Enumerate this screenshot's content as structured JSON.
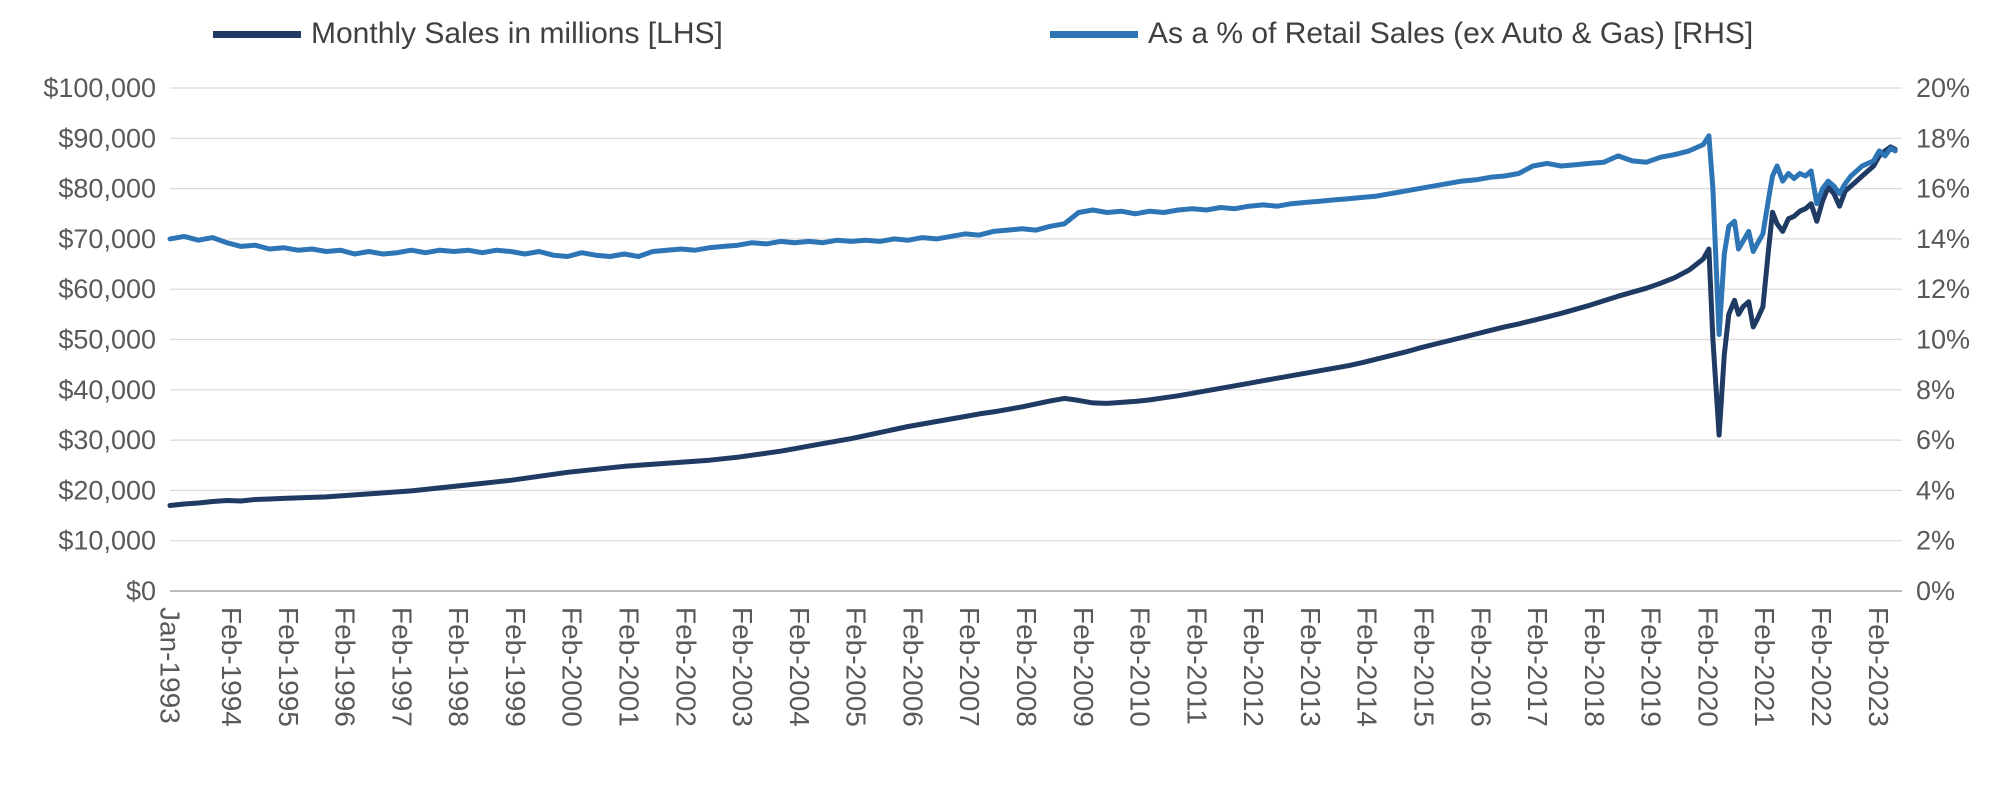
{
  "chart_data": {
    "type": "line",
    "title": "",
    "grid": "horizontal",
    "legend_position": "top",
    "x_axis": {
      "unit": "month-year",
      "range": [
        1993.0,
        2023.5
      ],
      "tick_labels": [
        "Jan-1993",
        "Feb-1994",
        "Feb-1995",
        "Feb-1996",
        "Feb-1997",
        "Feb-1998",
        "Feb-1999",
        "Feb-2000",
        "Feb-2001",
        "Feb-2002",
        "Feb-2003",
        "Feb-2004",
        "Feb-2005",
        "Feb-2006",
        "Feb-2007",
        "Feb-2008",
        "Feb-2009",
        "Feb-2010",
        "Feb-2011",
        "Feb-2012",
        "Feb-2013",
        "Feb-2014",
        "Feb-2015",
        "Feb-2016",
        "Feb-2017",
        "Feb-2018",
        "Feb-2019",
        "Feb-2020",
        "Feb-2021",
        "Feb-2022",
        "Feb-2023"
      ],
      "tick_positions": [
        1993.0,
        1994.083,
        1995.083,
        1996.083,
        1997.083,
        1998.083,
        1999.083,
        2000.083,
        2001.083,
        2002.083,
        2003.083,
        2004.083,
        2005.083,
        2006.083,
        2007.083,
        2008.083,
        2009.083,
        2010.083,
        2011.083,
        2012.083,
        2013.083,
        2014.083,
        2015.083,
        2016.083,
        2017.083,
        2018.083,
        2019.083,
        2020.083,
        2021.083,
        2022.083,
        2023.083
      ]
    },
    "left_axis": {
      "min": 0,
      "max": 100000,
      "step": 10000,
      "tick_labels": [
        "$0",
        "$10,000",
        "$20,000",
        "$30,000",
        "$40,000",
        "$50,000",
        "$60,000",
        "$70,000",
        "$80,000",
        "$90,000",
        "$100,000"
      ]
    },
    "right_axis": {
      "min": 0,
      "max": 20,
      "step": 2,
      "tick_labels": [
        "0%",
        "2%",
        "4%",
        "6%",
        "8%",
        "10%",
        "12%",
        "14%",
        "16%",
        "18%",
        "20%"
      ]
    },
    "x": [
      1993.0,
      1993.25,
      1993.5,
      1993.75,
      1994.0,
      1994.25,
      1994.5,
      1994.75,
      1995.0,
      1995.25,
      1995.5,
      1995.75,
      1996.0,
      1996.25,
      1996.5,
      1996.75,
      1997.0,
      1997.25,
      1997.5,
      1997.75,
      1998.0,
      1998.25,
      1998.5,
      1998.75,
      1999.0,
      1999.25,
      1999.5,
      1999.75,
      2000.0,
      2000.25,
      2000.5,
      2000.75,
      2001.0,
      2001.25,
      2001.5,
      2001.75,
      2002.0,
      2002.25,
      2002.5,
      2002.75,
      2003.0,
      2003.25,
      2003.5,
      2003.75,
      2004.0,
      2004.25,
      2004.5,
      2004.75,
      2005.0,
      2005.25,
      2005.5,
      2005.75,
      2006.0,
      2006.25,
      2006.5,
      2006.75,
      2007.0,
      2007.25,
      2007.5,
      2007.75,
      2008.0,
      2008.25,
      2008.5,
      2008.75,
      2009.0,
      2009.25,
      2009.5,
      2009.75,
      2010.0,
      2010.25,
      2010.5,
      2010.75,
      2011.0,
      2011.25,
      2011.5,
      2011.75,
      2012.0,
      2012.25,
      2012.5,
      2012.75,
      2013.0,
      2013.25,
      2013.5,
      2013.75,
      2014.0,
      2014.25,
      2014.5,
      2014.75,
      2015.0,
      2015.25,
      2015.5,
      2015.75,
      2016.0,
      2016.25,
      2016.5,
      2016.75,
      2017.0,
      2017.25,
      2017.5,
      2017.75,
      2018.0,
      2018.25,
      2018.5,
      2018.75,
      2019.0,
      2019.25,
      2019.5,
      2019.75,
      2020.0,
      2020.1,
      2020.17,
      2020.28,
      2020.37,
      2020.45,
      2020.55,
      2020.62,
      2020.7,
      2020.8,
      2020.88,
      2020.95,
      2021.05,
      2021.15,
      2021.22,
      2021.3,
      2021.4,
      2021.5,
      2021.6,
      2021.7,
      2021.8,
      2021.9,
      2022.0,
      2022.1,
      2022.2,
      2022.3,
      2022.4,
      2022.5,
      2022.6,
      2022.7,
      2022.8,
      2022.9,
      2023.0,
      2023.1,
      2023.2,
      2023.3,
      2023.38
    ],
    "series": [
      {
        "name": "Monthly Sales in millions [LHS]",
        "axis": "left",
        "color": "#1F3A63",
        "values": [
          17000,
          17300,
          17500,
          17800,
          18000,
          17900,
          18200,
          18300,
          18400,
          18500,
          18600,
          18700,
          18900,
          19100,
          19300,
          19500,
          19700,
          19900,
          20200,
          20500,
          20800,
          21100,
          21400,
          21700,
          22000,
          22400,
          22800,
          23200,
          23600,
          23900,
          24200,
          24500,
          24800,
          25000,
          25200,
          25400,
          25600,
          25800,
          26000,
          26300,
          26600,
          27000,
          27400,
          27800,
          28300,
          28800,
          29300,
          29800,
          30300,
          30900,
          31500,
          32100,
          32700,
          33200,
          33700,
          34200,
          34700,
          35200,
          35600,
          36100,
          36600,
          37200,
          37800,
          38300,
          37900,
          37400,
          37300,
          37500,
          37700,
          38000,
          38400,
          38800,
          39300,
          39800,
          40300,
          40800,
          41300,
          41800,
          42300,
          42800,
          43300,
          43800,
          44300,
          44800,
          45400,
          46100,
          46800,
          47500,
          48300,
          49000,
          49700,
          50400,
          51100,
          51800,
          52500,
          53100,
          53800,
          54500,
          55200,
          56000,
          56800,
          57700,
          58600,
          59400,
          60200,
          61200,
          62300,
          63800,
          66000,
          68000,
          50000,
          31000,
          47000,
          55000,
          57800,
          55000,
          56500,
          57500,
          52500,
          54000,
          56500,
          68000,
          75300,
          73000,
          71500,
          74000,
          74500,
          75500,
          76000,
          77000,
          73500,
          77500,
          80300,
          79000,
          76500,
          79500,
          80500,
          81500,
          82500,
          83500,
          84500,
          86500,
          87500,
          88300,
          87800
        ]
      },
      {
        "name": "As a % of Retail Sales (ex Auto & Gas) [RHS]",
        "axis": "right",
        "color": "#2E75B6",
        "values": [
          14.0,
          14.1,
          13.95,
          14.05,
          13.85,
          13.7,
          13.75,
          13.6,
          13.65,
          13.55,
          13.6,
          13.5,
          13.55,
          13.4,
          13.5,
          13.4,
          13.45,
          13.55,
          13.45,
          13.55,
          13.5,
          13.55,
          13.45,
          13.55,
          13.5,
          13.4,
          13.5,
          13.35,
          13.3,
          13.45,
          13.35,
          13.3,
          13.4,
          13.3,
          13.5,
          13.55,
          13.6,
          13.55,
          13.65,
          13.7,
          13.75,
          13.85,
          13.8,
          13.9,
          13.85,
          13.9,
          13.85,
          13.95,
          13.9,
          13.95,
          13.9,
          14.0,
          13.95,
          14.05,
          14.0,
          14.1,
          14.2,
          14.15,
          14.3,
          14.35,
          14.4,
          14.35,
          14.5,
          14.6,
          15.05,
          15.15,
          15.05,
          15.1,
          15.0,
          15.1,
          15.05,
          15.15,
          15.2,
          15.15,
          15.25,
          15.2,
          15.3,
          15.35,
          15.3,
          15.4,
          15.45,
          15.5,
          15.55,
          15.6,
          15.65,
          15.7,
          15.8,
          15.9,
          16.0,
          16.1,
          16.2,
          16.3,
          16.35,
          16.45,
          16.5,
          16.6,
          16.9,
          17.0,
          16.9,
          16.95,
          17.0,
          17.05,
          17.3,
          17.1,
          17.05,
          17.25,
          17.35,
          17.5,
          17.75,
          18.1,
          16.0,
          10.2,
          13.4,
          14.5,
          14.7,
          13.6,
          13.9,
          14.3,
          13.5,
          13.8,
          14.2,
          15.6,
          16.5,
          16.9,
          16.3,
          16.6,
          16.4,
          16.6,
          16.5,
          16.7,
          15.4,
          16.0,
          16.3,
          16.1,
          15.8,
          16.2,
          16.5,
          16.7,
          16.9,
          17.0,
          17.1,
          17.5,
          17.3,
          17.6,
          17.5
        ]
      }
    ]
  }
}
